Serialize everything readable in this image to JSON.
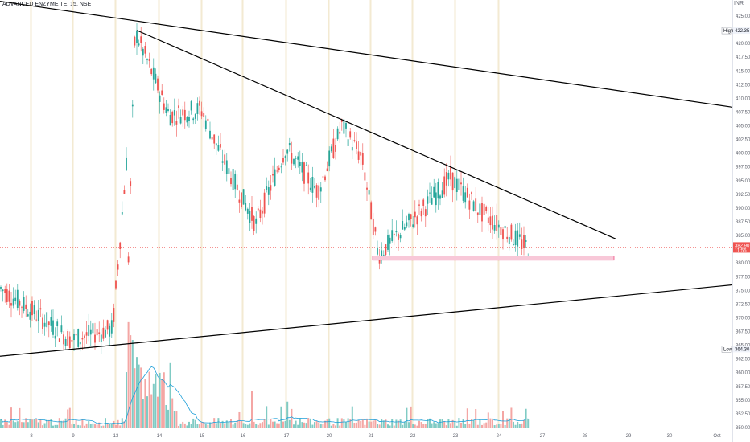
{
  "header": {
    "symbol": "ADVANCED ENZYME TE",
    "interval": "15",
    "exchange": "NSE",
    "separator": ", "
  },
  "colors": {
    "up": "#26a69a",
    "down": "#ef5350",
    "volume_up": "#80cbc4",
    "volume_down": "#f4a6a4",
    "volume_ma": "#1e9fd8",
    "trendline": "#000000",
    "support_fill": "#f8c8d8",
    "support_border": "#e91e63",
    "price_tag": "#ef5350",
    "grid_session": "#f3ead2"
  },
  "chart_data": {
    "type": "candlestick",
    "symbol": "ADVANCED ENZYME TE, 15, NSE",
    "x_axis_labels": [
      "8",
      "9",
      "13",
      "14",
      "15",
      "16",
      "17",
      "20",
      "21",
      "22",
      "23",
      "24",
      "27",
      "28",
      "29",
      "30",
      "Oct"
    ],
    "y_ticks": [
      350.0,
      352.5,
      355.0,
      357.5,
      360.0,
      362.5,
      365.0,
      367.5,
      370.0,
      372.5,
      375.0,
      377.5,
      380.0,
      385.0,
      387.5,
      390.0,
      392.5,
      395.0,
      397.5,
      400.0,
      402.5,
      405.0,
      407.5,
      410.0,
      412.5,
      415.0,
      417.5,
      420.0,
      425.0
    ],
    "y_tick_labels": [
      "350.00",
      "352.50",
      "355.00",
      "357.50",
      "360.00",
      "362.50",
      "365.00",
      "367.50",
      "370.00",
      "372.50",
      "375.00",
      "377.50",
      "380.00",
      "385.00",
      "387.50",
      "390.00",
      "392.50",
      "395.00",
      "397.50",
      "400.00",
      "402.50",
      "405.00",
      "407.50",
      "410.00",
      "412.50",
      "415.00",
      "417.50",
      "420.00",
      "425.00"
    ],
    "ylim": [
      349,
      427.5
    ],
    "high": {
      "label": "High",
      "value": "422.35"
    },
    "low": {
      "label": "Low",
      "value": "364.30"
    },
    "last_price": {
      "value": "382.90",
      "countdown": "11:55"
    },
    "axis_currency": "INR",
    "ohlc_anchors": [
      {
        "session": "8",
        "price": 375.5
      },
      {
        "session": "9",
        "price": 366.0
      },
      {
        "session": "13",
        "price": 368.0
      },
      {
        "session": "13",
        "price": 421.5
      },
      {
        "session": "14",
        "price": 407.0
      },
      {
        "session": "15",
        "price": 408.0
      },
      {
        "session": "15",
        "price": 399.5
      },
      {
        "session": "16",
        "price": 387.0
      },
      {
        "session": "17",
        "price": 401.0
      },
      {
        "session": "17",
        "price": 393.0
      },
      {
        "session": "20",
        "price": 405.0
      },
      {
        "session": "20",
        "price": 399.0
      },
      {
        "session": "21",
        "price": 381.5
      },
      {
        "session": "22",
        "price": 389.0
      },
      {
        "session": "23",
        "price": 395.5
      },
      {
        "session": "23",
        "price": 389.0
      },
      {
        "session": "24",
        "price": 382.9
      }
    ],
    "drawings": {
      "trendlines": [
        {
          "name": "upper-resistance",
          "from": {
            "session": "left-edge",
            "price": 427.7
          },
          "to": {
            "session": "right-edge",
            "price": 408.4
          }
        },
        {
          "name": "descending-resistance",
          "from": {
            "session": "13",
            "price": 422.4
          },
          "to": {
            "session": "28-29",
            "price": 384.4
          }
        },
        {
          "name": "ascending-support",
          "from": {
            "session": "left-edge",
            "price": 363.0
          },
          "to": {
            "session": "right-edge",
            "price": 376.0
          }
        }
      ],
      "support_zone": {
        "from_session": "21",
        "to_session": "28-29",
        "top": 381.3,
        "bottom": 380.5
      }
    },
    "grid": false,
    "volume_panel": true
  }
}
